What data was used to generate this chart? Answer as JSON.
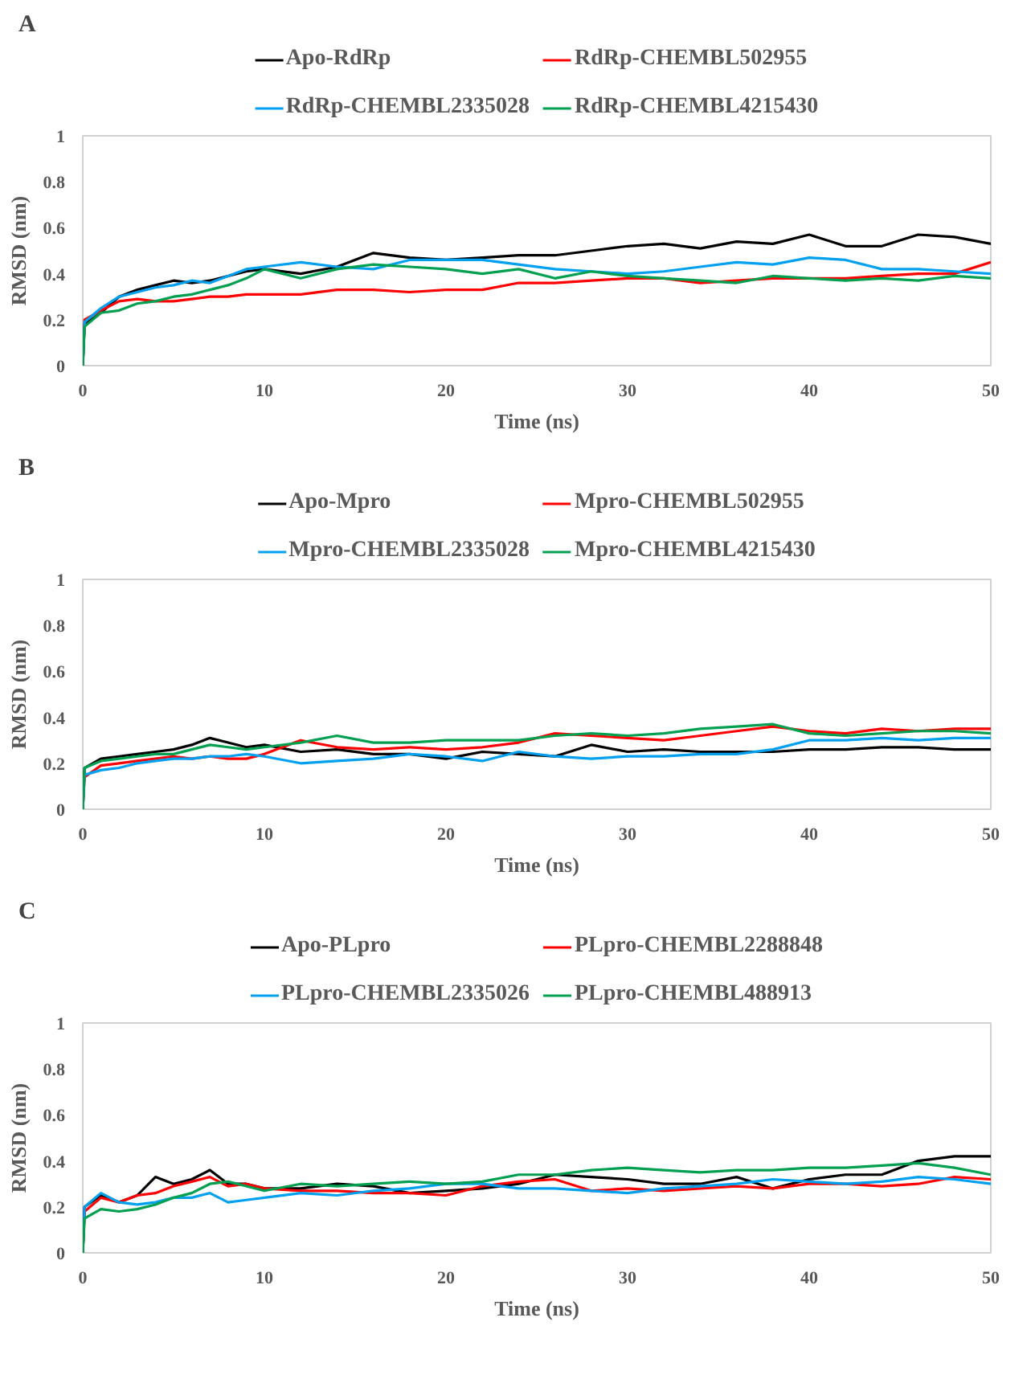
{
  "chart_data": [
    {
      "type": "line",
      "title": "A",
      "xlabel": "Time (ns)",
      "ylabel": "RMSD (nm)",
      "xlim": [
        0,
        50
      ],
      "xticks": [
        0,
        10,
        20,
        30,
        40,
        50
      ],
      "ylim": [
        0,
        1
      ],
      "yticks": [
        0,
        0.2,
        0.4,
        0.6,
        0.8,
        1
      ],
      "grid": false,
      "legend": "top",
      "line_style": "solid",
      "x": [
        0,
        0.1,
        1,
        2,
        3,
        4,
        5,
        6,
        7,
        8,
        9,
        10,
        12,
        14,
        16,
        18,
        20,
        22,
        24,
        26,
        28,
        30,
        32,
        34,
        36,
        38,
        40,
        42,
        44,
        46,
        48,
        50
      ],
      "series": [
        {
          "name": "Apo-RdRp",
          "color": "#000000",
          "values": [
            0,
            0.18,
            0.23,
            0.3,
            0.33,
            0.35,
            0.37,
            0.36,
            0.37,
            0.39,
            0.41,
            0.42,
            0.4,
            0.43,
            0.49,
            0.47,
            0.46,
            0.47,
            0.48,
            0.48,
            0.5,
            0.52,
            0.53,
            0.51,
            0.54,
            0.53,
            0.57,
            0.52,
            0.52,
            0.57,
            0.56,
            0.53
          ]
        },
        {
          "name": "RdRp-CHEMBL502955",
          "color": "#ff0000",
          "values": [
            0,
            0.2,
            0.24,
            0.28,
            0.29,
            0.28,
            0.28,
            0.29,
            0.3,
            0.3,
            0.31,
            0.31,
            0.31,
            0.33,
            0.33,
            0.32,
            0.33,
            0.33,
            0.36,
            0.36,
            0.37,
            0.38,
            0.38,
            0.36,
            0.37,
            0.38,
            0.38,
            0.38,
            0.39,
            0.4,
            0.4,
            0.45
          ]
        },
        {
          "name": "RdRp-CHEMBL2335028",
          "color": "#00a0f0",
          "values": [
            0,
            0.19,
            0.25,
            0.3,
            0.32,
            0.34,
            0.35,
            0.37,
            0.36,
            0.39,
            0.42,
            0.43,
            0.45,
            0.43,
            0.42,
            0.46,
            0.46,
            0.46,
            0.44,
            0.42,
            0.41,
            0.4,
            0.41,
            0.43,
            0.45,
            0.44,
            0.47,
            0.46,
            0.42,
            0.42,
            0.41,
            0.4
          ]
        },
        {
          "name": "RdRp-CHEMBL4215430",
          "color": "#00a050",
          "values": [
            0,
            0.17,
            0.23,
            0.24,
            0.27,
            0.28,
            0.3,
            0.31,
            0.33,
            0.35,
            0.38,
            0.42,
            0.38,
            0.42,
            0.44,
            0.43,
            0.42,
            0.4,
            0.42,
            0.38,
            0.41,
            0.39,
            0.38,
            0.37,
            0.36,
            0.39,
            0.38,
            0.37,
            0.38,
            0.37,
            0.39,
            0.38
          ]
        }
      ]
    },
    {
      "type": "line",
      "title": "B",
      "xlabel": "Time (ns)",
      "ylabel": "RMSD (nm)",
      "xlim": [
        0,
        50
      ],
      "xticks": [
        0,
        10,
        20,
        30,
        40,
        50
      ],
      "ylim": [
        0,
        1
      ],
      "yticks": [
        0,
        0.2,
        0.4,
        0.6,
        0.8,
        1
      ],
      "grid": false,
      "legend": "top",
      "line_style": "solid",
      "x": [
        0,
        0.1,
        1,
        2,
        3,
        4,
        5,
        6,
        7,
        8,
        9,
        10,
        12,
        14,
        16,
        18,
        20,
        22,
        24,
        26,
        28,
        30,
        32,
        34,
        36,
        38,
        40,
        42,
        44,
        46,
        48,
        50
      ],
      "series": [
        {
          "name": "Apo-Mpro",
          "color": "#000000",
          "values": [
            0,
            0.18,
            0.22,
            0.23,
            0.24,
            0.25,
            0.26,
            0.28,
            0.31,
            0.29,
            0.27,
            0.28,
            0.25,
            0.26,
            0.24,
            0.24,
            0.22,
            0.25,
            0.24,
            0.23,
            0.28,
            0.25,
            0.26,
            0.25,
            0.25,
            0.25,
            0.26,
            0.26,
            0.27,
            0.27,
            0.26,
            0.26
          ]
        },
        {
          "name": "Mpro-CHEMBL502955",
          "color": "#ff0000",
          "values": [
            0,
            0.14,
            0.19,
            0.2,
            0.21,
            0.22,
            0.23,
            0.22,
            0.23,
            0.22,
            0.22,
            0.24,
            0.3,
            0.27,
            0.26,
            0.27,
            0.26,
            0.27,
            0.29,
            0.33,
            0.32,
            0.31,
            0.3,
            0.32,
            0.34,
            0.36,
            0.34,
            0.33,
            0.35,
            0.34,
            0.35,
            0.35
          ]
        },
        {
          "name": "Mpro-CHEMBL2335028",
          "color": "#00a0f0",
          "values": [
            0,
            0.15,
            0.17,
            0.18,
            0.2,
            0.21,
            0.22,
            0.22,
            0.23,
            0.23,
            0.24,
            0.23,
            0.2,
            0.21,
            0.22,
            0.24,
            0.23,
            0.21,
            0.25,
            0.23,
            0.22,
            0.23,
            0.23,
            0.24,
            0.24,
            0.26,
            0.3,
            0.3,
            0.31,
            0.3,
            0.31,
            0.31
          ]
        },
        {
          "name": "Mpro-CHEMBL4215430",
          "color": "#00a050",
          "values": [
            0,
            0.18,
            0.21,
            0.22,
            0.23,
            0.24,
            0.24,
            0.26,
            0.28,
            0.27,
            0.26,
            0.27,
            0.29,
            0.32,
            0.29,
            0.29,
            0.3,
            0.3,
            0.3,
            0.32,
            0.33,
            0.32,
            0.33,
            0.35,
            0.36,
            0.37,
            0.33,
            0.32,
            0.33,
            0.34,
            0.34,
            0.33
          ]
        }
      ]
    },
    {
      "type": "line",
      "title": "C",
      "xlabel": "Time (ns)",
      "ylabel": "RMSD (nm)",
      "xlim": [
        0,
        50
      ],
      "xticks": [
        0,
        10,
        20,
        30,
        40,
        50
      ],
      "ylim": [
        0,
        1
      ],
      "yticks": [
        0,
        0.2,
        0.4,
        0.6,
        0.8,
        1
      ],
      "grid": false,
      "legend": "top",
      "line_style": "solid",
      "x": [
        0,
        0.1,
        1,
        2,
        3,
        4,
        5,
        6,
        7,
        8,
        9,
        10,
        12,
        14,
        16,
        18,
        20,
        22,
        24,
        26,
        28,
        30,
        32,
        34,
        36,
        38,
        40,
        42,
        44,
        46,
        48,
        50
      ],
      "series": [
        {
          "name": "Apo-PLpro",
          "color": "#000000",
          "values": [
            0,
            0.2,
            0.25,
            0.22,
            0.25,
            0.33,
            0.3,
            0.32,
            0.36,
            0.3,
            0.3,
            0.28,
            0.28,
            0.3,
            0.29,
            0.26,
            0.27,
            0.28,
            0.3,
            0.34,
            0.33,
            0.32,
            0.3,
            0.3,
            0.33,
            0.28,
            0.32,
            0.34,
            0.34,
            0.4,
            0.42,
            0.42
          ]
        },
        {
          "name": "PLpro-CHEMBL2288848",
          "color": "#ff0000",
          "values": [
            0,
            0.18,
            0.24,
            0.22,
            0.25,
            0.26,
            0.29,
            0.31,
            0.33,
            0.29,
            0.3,
            0.28,
            0.27,
            0.27,
            0.26,
            0.26,
            0.25,
            0.29,
            0.31,
            0.32,
            0.27,
            0.28,
            0.27,
            0.28,
            0.29,
            0.28,
            0.3,
            0.3,
            0.29,
            0.3,
            0.33,
            0.32
          ]
        },
        {
          "name": "PLpro-CHEMBL2335026",
          "color": "#00a0f0",
          "values": [
            0,
            0.2,
            0.26,
            0.22,
            0.21,
            0.22,
            0.24,
            0.24,
            0.26,
            0.22,
            0.23,
            0.24,
            0.26,
            0.25,
            0.27,
            0.28,
            0.3,
            0.3,
            0.28,
            0.28,
            0.27,
            0.26,
            0.28,
            0.29,
            0.3,
            0.32,
            0.31,
            0.3,
            0.31,
            0.33,
            0.32,
            0.3
          ]
        },
        {
          "name": "PLpro-CHEMBL488913",
          "color": "#00a050",
          "values": [
            0,
            0.15,
            0.19,
            0.18,
            0.19,
            0.21,
            0.24,
            0.26,
            0.3,
            0.31,
            0.29,
            0.27,
            0.3,
            0.29,
            0.3,
            0.31,
            0.3,
            0.31,
            0.34,
            0.34,
            0.36,
            0.37,
            0.36,
            0.35,
            0.36,
            0.36,
            0.37,
            0.37,
            0.38,
            0.39,
            0.37,
            0.34
          ]
        }
      ]
    }
  ]
}
